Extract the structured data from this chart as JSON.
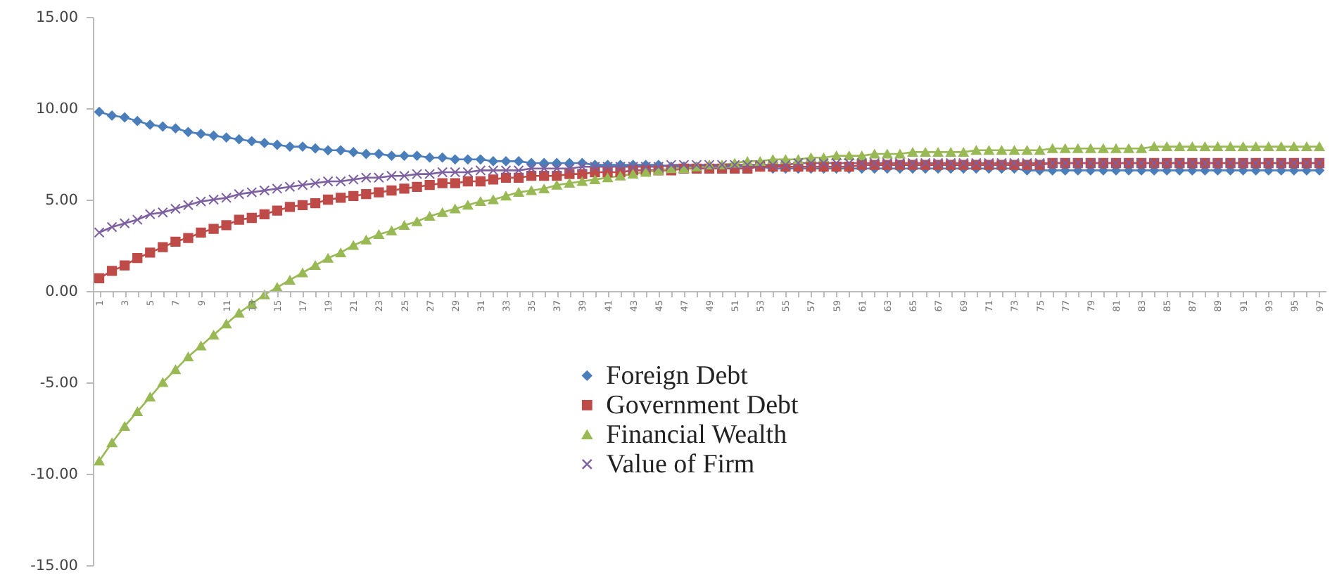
{
  "chart_data": {
    "type": "line",
    "categories": [
      "1",
      null,
      "3",
      null,
      "5",
      null,
      "7",
      null,
      "9",
      null,
      "11",
      null,
      "13",
      null,
      "15",
      null,
      "17",
      null,
      "19",
      null,
      "21",
      null,
      "23",
      null,
      "25",
      null,
      "27",
      null,
      "29",
      null,
      "31",
      null,
      "33",
      null,
      "35",
      null,
      "37",
      null,
      "39",
      null,
      "41",
      null,
      "43",
      null,
      "45",
      null,
      "47",
      null,
      "49",
      null,
      "51",
      null,
      "53",
      null,
      "55",
      null,
      "57",
      null,
      "59",
      null,
      "61",
      null,
      "63",
      null,
      "65",
      null,
      "67",
      null,
      "69",
      null,
      "71",
      null,
      "73",
      null,
      "75",
      null,
      "77",
      null,
      "79",
      null,
      "81",
      null,
      "83",
      null,
      "85",
      null,
      "87",
      null,
      "89",
      null,
      "91",
      null,
      "93",
      null,
      "95",
      null,
      "97"
    ],
    "ylim": [
      -15,
      15
    ],
    "yticks": [
      {
        "value": -15,
        "label": "-15.00"
      },
      {
        "value": -10,
        "label": "-10.00"
      },
      {
        "value": -5,
        "label": "-5.00"
      },
      {
        "value": 0,
        "label": "0.00"
      },
      {
        "value": 5,
        "label": "5.00"
      },
      {
        "value": 10,
        "label": "10.00"
      },
      {
        "value": 15,
        "label": "15.00"
      }
    ],
    "legend": "bottom",
    "series": [
      {
        "name": "Foreign Debt",
        "color": "#4a7ebb",
        "marker": "diamond",
        "values": [
          9.8,
          9.6,
          9.5,
          9.3,
          9.1,
          9.0,
          8.9,
          8.7,
          8.6,
          8.5,
          8.4,
          8.3,
          8.2,
          8.1,
          8.0,
          7.9,
          7.9,
          7.8,
          7.7,
          7.7,
          7.6,
          7.5,
          7.5,
          7.4,
          7.4,
          7.4,
          7.3,
          7.3,
          7.2,
          7.2,
          7.2,
          7.1,
          7.1,
          7.1,
          7.0,
          7.0,
          7.0,
          7.0,
          7.0,
          6.9,
          6.9,
          6.9,
          6.9,
          6.9,
          6.9,
          6.8,
          6.8,
          6.8,
          6.8,
          6.8,
          6.8,
          6.8,
          6.8,
          6.7,
          6.7,
          6.7,
          6.7,
          6.7,
          6.7,
          6.7,
          6.7,
          6.7,
          6.7,
          6.7,
          6.7,
          6.7,
          6.7,
          6.7,
          6.7,
          6.7,
          6.7,
          6.7,
          6.7,
          6.6,
          6.6,
          6.6,
          6.6,
          6.6,
          6.6,
          6.6,
          6.6,
          6.6,
          6.6,
          6.6,
          6.6,
          6.6,
          6.6,
          6.6,
          6.6,
          6.6,
          6.6,
          6.6,
          6.6,
          6.6,
          6.6,
          6.6,
          6.6
        ]
      },
      {
        "name": "Government Debt",
        "color": "#be4b48",
        "marker": "square",
        "values": [
          0.7,
          1.1,
          1.4,
          1.8,
          2.1,
          2.4,
          2.7,
          2.9,
          3.2,
          3.4,
          3.6,
          3.9,
          4.0,
          4.2,
          4.4,
          4.6,
          4.7,
          4.8,
          5.0,
          5.1,
          5.2,
          5.3,
          5.4,
          5.5,
          5.6,
          5.7,
          5.8,
          5.9,
          5.9,
          6.0,
          6.0,
          6.1,
          6.2,
          6.2,
          6.3,
          6.3,
          6.3,
          6.4,
          6.4,
          6.5,
          6.5,
          6.5,
          6.6,
          6.6,
          6.6,
          6.6,
          6.7,
          6.7,
          6.7,
          6.7,
          6.7,
          6.7,
          6.8,
          6.8,
          6.8,
          6.8,
          6.8,
          6.8,
          6.8,
          6.8,
          6.9,
          6.9,
          6.9,
          6.9,
          6.9,
          6.9,
          6.9,
          6.9,
          6.9,
          6.9,
          6.9,
          6.9,
          6.9,
          6.9,
          6.9,
          7.0,
          7.0,
          7.0,
          7.0,
          7.0,
          7.0,
          7.0,
          7.0,
          7.0,
          7.0,
          7.0,
          7.0,
          7.0,
          7.0,
          7.0,
          7.0,
          7.0,
          7.0,
          7.0,
          7.0,
          7.0,
          7.0
        ]
      },
      {
        "name": "Financial Wealth",
        "color": "#98b954",
        "marker": "triangle",
        "values": [
          -9.3,
          -8.3,
          -7.4,
          -6.6,
          -5.8,
          -5.0,
          -4.3,
          -3.6,
          -3.0,
          -2.4,
          -1.8,
          -1.2,
          -0.7,
          -0.2,
          0.2,
          0.6,
          1.0,
          1.4,
          1.8,
          2.1,
          2.5,
          2.8,
          3.1,
          3.3,
          3.6,
          3.8,
          4.1,
          4.3,
          4.5,
          4.7,
          4.9,
          5.0,
          5.2,
          5.4,
          5.5,
          5.6,
          5.8,
          5.9,
          6.0,
          6.1,
          6.2,
          6.3,
          6.4,
          6.5,
          6.6,
          6.7,
          6.7,
          6.8,
          6.9,
          6.9,
          7.0,
          7.1,
          7.1,
          7.2,
          7.2,
          7.2,
          7.3,
          7.3,
          7.4,
          7.4,
          7.4,
          7.5,
          7.5,
          7.5,
          7.6,
          7.6,
          7.6,
          7.6,
          7.6,
          7.7,
          7.7,
          7.7,
          7.7,
          7.7,
          7.7,
          7.8,
          7.8,
          7.8,
          7.8,
          7.8,
          7.8,
          7.8,
          7.8,
          7.9,
          7.9,
          7.9,
          7.9,
          7.9,
          7.9,
          7.9,
          7.9,
          7.9,
          7.9,
          7.9,
          7.9,
          7.9,
          7.9
        ]
      },
      {
        "name": "Value of  Firm",
        "color": "#7d60a0",
        "marker": "cross",
        "values": [
          3.2,
          3.5,
          3.7,
          3.9,
          4.2,
          4.3,
          4.5,
          4.7,
          4.9,
          5.0,
          5.1,
          5.3,
          5.4,
          5.5,
          5.6,
          5.7,
          5.8,
          5.9,
          6.0,
          6.0,
          6.1,
          6.2,
          6.2,
          6.3,
          6.3,
          6.4,
          6.4,
          6.5,
          6.5,
          6.5,
          6.6,
          6.6,
          6.6,
          6.6,
          6.7,
          6.7,
          6.7,
          6.7,
          6.8,
          6.8,
          6.8,
          6.8,
          6.8,
          6.8,
          6.8,
          6.9,
          6.9,
          6.9,
          6.9,
          6.9,
          6.9,
          6.9,
          6.9,
          6.9,
          6.9,
          7.0,
          7.0,
          7.0,
          7.0,
          7.0,
          7.0,
          7.0,
          7.0,
          7.0,
          7.0,
          7.0,
          7.0,
          7.0,
          7.0,
          7.0,
          7.0,
          7.0,
          7.0,
          7.0,
          7.0,
          7.0,
          7.0,
          7.0,
          7.0,
          7.0,
          7.0,
          7.0,
          7.0,
          7.0,
          7.0,
          7.0,
          7.0,
          7.0,
          7.0,
          7.0,
          7.0,
          7.0,
          7.0,
          7.0,
          7.0,
          7.0,
          7.0
        ]
      }
    ]
  }
}
